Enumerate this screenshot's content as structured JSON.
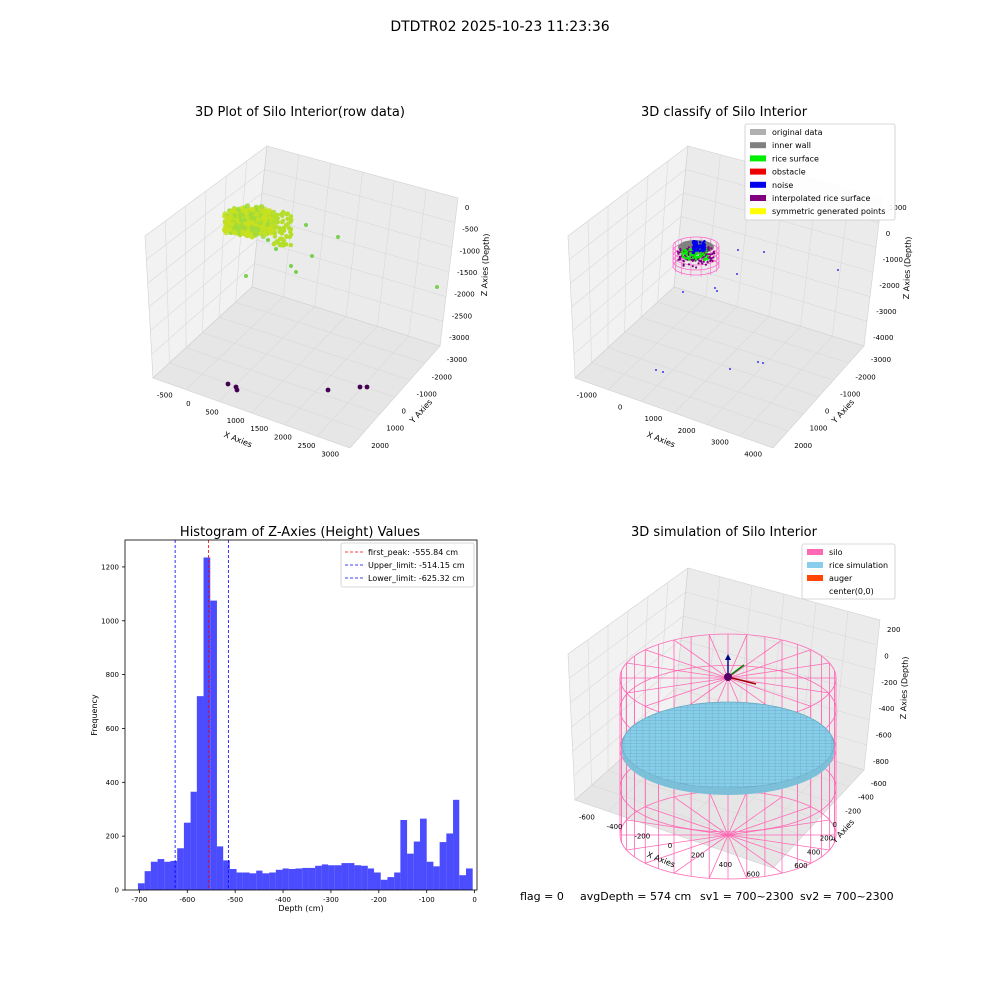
{
  "figure": {
    "suptitle": "DTDTR02 2025-10-23 11:23:36",
    "footer": {
      "flag": "flag = 0",
      "avg_depth": "avgDepth = 574 cm",
      "sv1": "sv1 = 700~2300",
      "sv2": "sv2 = 700~2300"
    }
  },
  "chart_data": [
    {
      "type": "scatter",
      "title": "3D Plot of Silo Interior(row data)",
      "xlabel": "X Axies",
      "ylabel": "Y Axies",
      "zlabel": "Z Axies (Depth)",
      "x_ticks": [
        "-500",
        "0",
        "500",
        "1000",
        "1500",
        "2000",
        "2500",
        "3000"
      ],
      "y_ticks": [
        "-3000",
        "-2000",
        "-1000",
        "0",
        "1000",
        "2000"
      ],
      "z_ticks": [
        "0",
        "-500",
        "-1000",
        "-1500",
        "-2000",
        "-2500",
        "-3000"
      ],
      "colormap": "viridis",
      "colors": {
        "high": "#c8e020",
        "mid": "#7ad151",
        "low": "#440154"
      }
    },
    {
      "type": "scatter",
      "title": "3D classify of Silo Interior",
      "xlabel": "X Axies",
      "ylabel": "Y Axies",
      "zlabel": "Z Axies (Depth)",
      "x_ticks": [
        "-1000",
        "0",
        "1000",
        "2000",
        "3000",
        "4000"
      ],
      "y_ticks": [
        "-3000",
        "-2000",
        "-1000",
        "0",
        "1000",
        "2000"
      ],
      "z_ticks": [
        "1000",
        "0",
        "-1000",
        "-2000",
        "-3000",
        "-4000"
      ],
      "legend_position": "top-right",
      "legend": [
        {
          "label": "original data",
          "color": "#b0b0b0"
        },
        {
          "label": "inner wall",
          "color": "#808080"
        },
        {
          "label": "rice surface",
          "color": "#00ee00"
        },
        {
          "label": "obstacle",
          "color": "#ee0000"
        },
        {
          "label": "noise",
          "color": "#0000ee"
        },
        {
          "label": "interpolated rice surface",
          "color": "#800080"
        },
        {
          "label": "symmetric generated points",
          "color": "#ffff00"
        }
      ]
    },
    {
      "type": "bar",
      "title": "Histogram of Z-Axies (Height) Values",
      "xlabel": "Depth (cm)",
      "ylabel": "Frequency",
      "xlim": [
        -730,
        5
      ],
      "ylim": [
        0,
        1300
      ],
      "x_ticks": [
        -700,
        -600,
        -500,
        -400,
        -300,
        -200,
        -100,
        0
      ],
      "y_ticks": [
        0,
        200,
        400,
        600,
        800,
        1000,
        1200
      ],
      "bar_color": "#0000ff",
      "bins": [
        [
          -703,
          -689,
          25
        ],
        [
          -689,
          -676,
          70
        ],
        [
          -676,
          -662,
          105
        ],
        [
          -662,
          -648,
          115
        ],
        [
          -648,
          -635,
          105
        ],
        [
          -635,
          -621,
          108
        ],
        [
          -621,
          -607,
          155
        ],
        [
          -607,
          -593,
          250
        ],
        [
          -593,
          -580,
          365
        ],
        [
          -580,
          -566,
          720
        ],
        [
          -566,
          -552,
          1235
        ],
        [
          -552,
          -538,
          1075
        ],
        [
          -538,
          -525,
          162
        ],
        [
          -525,
          -511,
          110
        ],
        [
          -511,
          -497,
          78
        ],
        [
          -497,
          -484,
          65
        ],
        [
          -484,
          -470,
          65
        ],
        [
          -470,
          -456,
          62
        ],
        [
          -456,
          -443,
          72
        ],
        [
          -443,
          -429,
          62
        ],
        [
          -429,
          -415,
          65
        ],
        [
          -415,
          -401,
          75
        ],
        [
          -401,
          -388,
          80
        ],
        [
          -388,
          -374,
          78
        ],
        [
          -374,
          -360,
          80
        ],
        [
          -360,
          -347,
          82
        ],
        [
          -347,
          -333,
          82
        ],
        [
          -333,
          -319,
          90
        ],
        [
          -319,
          -306,
          95
        ],
        [
          -306,
          -292,
          92
        ],
        [
          -292,
          -278,
          92
        ],
        [
          -278,
          -264,
          100
        ],
        [
          -264,
          -251,
          100
        ],
        [
          -251,
          -237,
          92
        ],
        [
          -237,
          -223,
          90
        ],
        [
          -223,
          -210,
          80
        ],
        [
          -210,
          -196,
          65
        ],
        [
          -196,
          -182,
          38
        ],
        [
          -182,
          -168,
          48
        ],
        [
          -168,
          -155,
          65
        ],
        [
          -155,
          -141,
          260
        ],
        [
          -141,
          -127,
          135
        ],
        [
          -127,
          -114,
          180
        ],
        [
          -114,
          -100,
          265
        ],
        [
          -100,
          -86,
          105
        ],
        [
          -86,
          -73,
          88
        ],
        [
          -73,
          -59,
          178
        ],
        [
          -59,
          -45,
          210
        ],
        [
          -45,
          -32,
          335
        ],
        [
          -32,
          -18,
          55
        ],
        [
          -18,
          -4,
          80
        ]
      ],
      "vlines": [
        {
          "x": -555.84,
          "color": "#ff0000"
        },
        {
          "x": -514.15,
          "color": "#0000ff"
        },
        {
          "x": -625.32,
          "color": "#0000ff"
        }
      ],
      "legend_position": "top-right",
      "legend": [
        {
          "label": "first_peak: -555.84 cm",
          "color": "#ff0000"
        },
        {
          "label": "Upper_limit: -514.15 cm",
          "color": "#0000ff"
        },
        {
          "label": "Lower_limit: -625.32 cm",
          "color": "#0000ff"
        }
      ]
    },
    {
      "type": "scatter",
      "title": "3D simulation of Silo Interior",
      "xlabel": "X Axies",
      "ylabel": "Y Axies",
      "zlabel": "Z Axies (Depth)",
      "x_ticks": [
        "-600",
        "-400",
        "-200",
        "0",
        "200",
        "400",
        "600"
      ],
      "y_ticks": [
        "-600",
        "-400",
        "-200",
        "0",
        "200",
        "400",
        "600"
      ],
      "z_ticks": [
        "200",
        "0",
        "-200",
        "-400",
        "-600",
        "-800"
      ],
      "legend_position": "top-right",
      "legend": [
        {
          "label": "silo",
          "color": "#ff69b4"
        },
        {
          "label": "rice simulation",
          "color": "#87ceeb"
        },
        {
          "label": "auger",
          "color": "#ff4500"
        },
        {
          "label": "center(0,0)",
          "color": "#ffffff"
        }
      ]
    }
  ]
}
